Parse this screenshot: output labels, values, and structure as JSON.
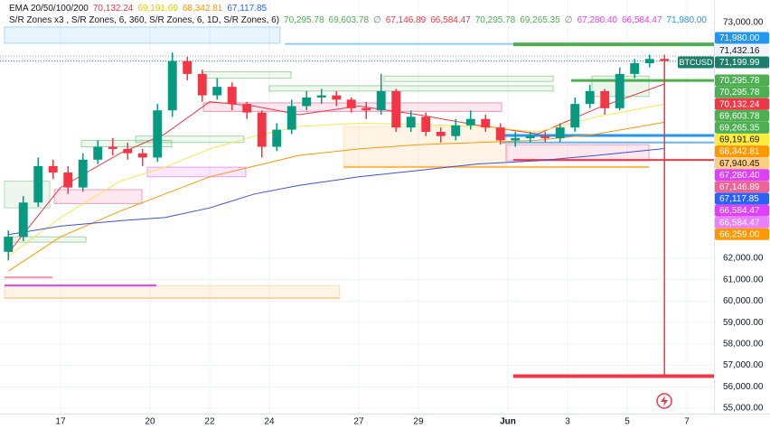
{
  "chart_data": {
    "type": "candlestick",
    "x": [
      15.25,
      15.75,
      16.25,
      16.75,
      17.25,
      17.75,
      18.25,
      18.75,
      19.25,
      19.75,
      20.25,
      20.75,
      21.25,
      21.75,
      22.25,
      22.75,
      23.25,
      23.75,
      24.25,
      24.75,
      25.25,
      25.75,
      26.25,
      26.75,
      27.25,
      27.75,
      28.25,
      28.75,
      29.25,
      29.75,
      30.25,
      30.75,
      31.25,
      31.75,
      32.25,
      32.75,
      33.25,
      33.75,
      34.25,
      34.75,
      35.25,
      35.75,
      36.25,
      36.75,
      37.25
    ],
    "open": [
      62300,
      63000,
      64600,
      66300,
      66000,
      65300,
      66600,
      67200,
      67100,
      66900,
      66700,
      68900,
      71200,
      70600,
      69600,
      70000,
      69200,
      68800,
      67200,
      68000,
      69100,
      69500,
      69600,
      69400,
      69000,
      68900,
      69800,
      68100,
      68600,
      67900,
      67700,
      68200,
      68500,
      68100,
      67500,
      67600,
      67700,
      67600,
      68100,
      69200,
      69800,
      69000,
      70600,
      71100,
      71300
    ],
    "high": [
      63300,
      64900,
      66700,
      66600,
      66300,
      66900,
      67500,
      67600,
      67400,
      67100,
      69200,
      71600,
      71400,
      70800,
      70400,
      70200,
      69300,
      68900,
      68300,
      69400,
      69800,
      69900,
      69800,
      69500,
      69300,
      70600,
      69900,
      68900,
      68800,
      68100,
      68500,
      68900,
      68700,
      68300,
      67900,
      67900,
      67900,
      68300,
      69500,
      70100,
      69900,
      70900,
      71300,
      71500,
      71500
    ],
    "low": [
      61900,
      62800,
      64400,
      65700,
      65000,
      65100,
      66400,
      66800,
      66600,
      66300,
      66500,
      68600,
      70300,
      69300,
      69400,
      68900,
      68500,
      66700,
      67000,
      67800,
      68900,
      69200,
      69100,
      68800,
      68500,
      68700,
      67900,
      67900,
      67700,
      67400,
      67500,
      68000,
      67900,
      67300,
      67200,
      67400,
      67400,
      67400,
      67900,
      69000,
      68700,
      68900,
      70400,
      70900,
      56500
    ],
    "close": [
      63000,
      64600,
      66300,
      66000,
      65300,
      66600,
      67200,
      67100,
      66900,
      66700,
      68900,
      71200,
      70600,
      69600,
      70000,
      69200,
      68800,
      67200,
      68000,
      69100,
      69500,
      69600,
      69400,
      69000,
      68900,
      69800,
      68100,
      68600,
      67900,
      67700,
      68200,
      68500,
      68100,
      67500,
      67600,
      67700,
      67600,
      68100,
      69200,
      69800,
      69000,
      70600,
      71100,
      71300,
      71199.99
    ],
    "up_color": "#089981",
    "down_color": "#f23645",
    "xlim": [
      14.97,
      38.91
    ],
    "ylim": [
      54750,
      74050
    ],
    "xticks": [
      17,
      20,
      22,
      24,
      27,
      29,
      {
        "value": 32,
        "label": "Jun"
      },
      {
        "value": 34,
        "label": "3"
      },
      {
        "value": 36,
        "label": "5"
      },
      {
        "value": 38,
        "label": "7"
      }
    ],
    "yticks": [
      {
        "value": 73000,
        "label": "73,000.00"
      },
      {
        "value": 62000,
        "label": "62,000.00"
      },
      {
        "value": 61000,
        "label": "61,000.00"
      },
      {
        "value": 60000,
        "label": "60,000.00"
      },
      {
        "value": 59000,
        "label": "59,000.00"
      },
      {
        "value": 58000,
        "label": "58,000.00"
      },
      {
        "value": 57000,
        "label": "57,000.00"
      },
      {
        "value": 56000,
        "label": "56,000.00"
      },
      {
        "value": 55000,
        "label": "55,000.00"
      }
    ],
    "indicators": [
      {
        "color": "#f23645",
        "x": [
          15.25,
          17,
          19,
          20.5,
          22,
          23.5,
          25,
          27,
          29,
          31,
          33,
          35,
          37.25
        ],
        "values": [
          62250,
          65300,
          66900,
          67800,
          69300,
          69100,
          68700,
          69100,
          68700,
          68200,
          67800,
          69000,
          70132
        ]
      },
      {
        "color": "#f5e94d",
        "x": [
          15.25,
          17,
          19,
          20.5,
          22,
          23.5,
          25,
          27,
          29,
          31,
          33,
          35,
          37.25
        ],
        "values": [
          62100,
          63900,
          65600,
          66250,
          67100,
          67700,
          68150,
          68300,
          68250,
          68150,
          67900,
          68600,
          69192
        ]
      },
      {
        "color": "#ff9800",
        "x": [
          15.25,
          17,
          19,
          20.5,
          22,
          23.5,
          25,
          27,
          29,
          31,
          33,
          35,
          37.25
        ],
        "values": [
          61400,
          63000,
          64200,
          65000,
          65800,
          66300,
          66800,
          67100,
          67300,
          67400,
          67500,
          67800,
          68343
        ]
      },
      {
        "color": "#3f51d5",
        "x": [
          15.25,
          17,
          19,
          20.5,
          22,
          23.5,
          25,
          27,
          29,
          31,
          33,
          35,
          37.25
        ],
        "values": [
          63100,
          63500,
          63750,
          63900,
          64350,
          65000,
          65400,
          65800,
          66100,
          66400,
          66550,
          66800,
          67118
        ]
      }
    ],
    "zones": [
      {
        "x": [
          15.12,
          24.36
        ],
        "y": [
          72030,
          72790
        ],
        "fill": "rgba(33,150,243,0.10)",
        "stroke": "rgba(33,150,243,0.35)"
      },
      {
        "x": [
          21.79,
          24.73
        ],
        "y": [
          70400,
          70700
        ],
        "fill": "rgba(76,175,80,0.08)",
        "stroke": "rgba(76,175,80,0.5)"
      },
      {
        "x": [
          24.0,
          33.52
        ],
        "y": [
          69800,
          70050
        ],
        "fill": "rgba(76,175,80,0.10)",
        "stroke": "rgba(76,175,80,0.5)"
      },
      {
        "x": [
          27.85,
          33.52
        ],
        "y": [
          70250,
          70500
        ],
        "fill": "rgba(76,175,80,0.08)",
        "stroke": "rgba(76,175,80,0.5)"
      },
      {
        "x": [
          21.79,
          31.79
        ],
        "y": [
          68850,
          69250
        ],
        "fill": "rgba(233,30,99,0.10)",
        "stroke": "rgba(233,30,99,0.45)"
      },
      {
        "x": [
          26.49,
          31.94
        ],
        "y": [
          66260,
          68150
        ],
        "fill": "rgba(255,152,0,0.10)",
        "stroke": "rgba(255,152,0,0.2)"
      },
      {
        "x": [
          31.94,
          36.73
        ],
        "y": [
          66550,
          67300
        ],
        "fill": "rgba(233,30,99,0.10)",
        "stroke": "rgba(233,30,99,0.4)"
      },
      {
        "x": [
          17.7,
          20.73
        ],
        "y": [
          67200,
          67500
        ],
        "fill": "rgba(76,175,80,0.10)",
        "stroke": "rgba(76,175,80,0.5)"
      },
      {
        "x": [
          19.52,
          23.15
        ],
        "y": [
          67400,
          67700
        ],
        "fill": "rgba(76,175,80,0.08)",
        "stroke": "rgba(76,175,80,0.5)"
      },
      {
        "x": [
          19.91,
          23.21
        ],
        "y": [
          65800,
          66250
        ],
        "fill": "rgba(224,64,251,0.12)",
        "stroke": "rgba(224,64,251,0.5)"
      },
      {
        "x": [
          16.79,
          19.73
        ],
        "y": [
          64550,
          65200
        ],
        "fill": "rgba(233,30,99,0.10)",
        "stroke": "rgba(233,30,99,0.4)"
      },
      {
        "x": [
          15.12,
          16.64
        ],
        "y": [
          64350,
          65600
        ],
        "fill": "rgba(76,175,80,0.10)",
        "stroke": "rgba(76,175,80,0.4)"
      },
      {
        "x": [
          15.12,
          17.85
        ],
        "y": [
          62750,
          63000
        ],
        "fill": "rgba(76,175,80,0.10)",
        "stroke": "rgba(76,175,80,0.5)"
      },
      {
        "x": [
          15.12,
          26.36
        ],
        "y": [
          60140,
          60730
        ],
        "fill": "rgba(255,152,0,0.10)",
        "stroke": "rgba(255,152,0,0.3)"
      },
      {
        "x": [
          34.82,
          36.73
        ],
        "y": [
          69550,
          70500
        ],
        "fill": "rgba(76,175,80,0.10)",
        "stroke": "rgba(76,175,80,0.5)"
      }
    ],
    "levels": [
      {
        "y": 72000,
        "x": [
          24.52,
          38.91
        ],
        "color": "#90caf9",
        "width": 2
      },
      {
        "y": 71980,
        "x": [
          32.18,
          38.91
        ],
        "color": "#4caf50",
        "width": 4
      },
      {
        "y": 71432.16,
        "x": [
          14.97,
          38.91
        ],
        "color": "#9598a1",
        "width": 1,
        "dash": true
      },
      {
        "y": 71199.99,
        "x": [
          14.97,
          38.91
        ],
        "color": "#089981",
        "width": 1,
        "dash": true
      },
      {
        "y": 70295.78,
        "x": [
          34.12,
          38.91
        ],
        "color": "#4caf50",
        "width": 3
      },
      {
        "y": 67730,
        "x": [
          31.79,
          38.91
        ],
        "color": "#2196f3",
        "width": 3
      },
      {
        "y": 67400,
        "x": [
          31.79,
          38.91
        ],
        "color": "#64b5f6",
        "width": 2
      },
      {
        "y": 66584.47,
        "x": [
          32.18,
          38.91
        ],
        "color": "#f23645",
        "width": 2
      },
      {
        "y": 66259,
        "x": [
          26.49,
          36.73
        ],
        "color": "#ffb74d",
        "width": 2
      },
      {
        "y": 61100,
        "x": [
          15.12,
          16.73
        ],
        "color": "#f48fb1",
        "width": 2
      },
      {
        "y": 60730,
        "x": [
          15.12,
          20.21
        ],
        "color": "#e040fb",
        "width": 2
      },
      {
        "y": 60140,
        "x": [
          15.12,
          26.36
        ],
        "color": "#ffb74d",
        "width": 1
      },
      {
        "y": 56500,
        "x": [
          32.18,
          38.91
        ],
        "color": "#f23645",
        "width": 4
      }
    ]
  },
  "legend": [
    {
      "label": "EMA 20/50/100/200",
      "values": [
        {
          "text": "70,132.24",
          "color": "#f23645"
        },
        {
          "text": "69,191.69",
          "color": "#e6c800"
        },
        {
          "text": "68,342.81",
          "color": "#ff9800"
        },
        {
          "text": "67,117.85",
          "color": "#2962ff"
        }
      ]
    },
    {
      "label": "S/R Zones x3 , S/R Zones, 6, 360, S/R Zones, 6, 1D, S/R Zones, 6)",
      "values": [
        {
          "text": "70,295.78",
          "color": "#4caf50"
        },
        {
          "text": "69,603.78",
          "color": "#4caf50"
        },
        {
          "text": "∅",
          "color": "#787b86"
        },
        {
          "text": "67,146.89",
          "color": "#f23645"
        },
        {
          "text": "66,584.47",
          "color": "#f23645"
        },
        {
          "text": "70,295.78",
          "color": "#4caf50"
        },
        {
          "text": "69,265.35",
          "color": "#4caf50"
        },
        {
          "text": "∅",
          "color": "#787b86"
        },
        {
          "text": "67,280.40",
          "color": "#e040fb"
        },
        {
          "text": "66,584.47",
          "color": "#e040fb"
        },
        {
          "text": "71,980.00",
          "color": "#2196f3"
        }
      ]
    }
  ],
  "symbol_tag": {
    "text": "BTCUSD",
    "color": "#1b7f6b"
  },
  "price_tags": [
    {
      "text": "71,980.00",
      "color": "#2196f3",
      "text_color": "#ffffff"
    },
    {
      "text": "71,432.16",
      "color": "#f0f3fa",
      "text_color": "#131722"
    },
    {
      "text": "71,199.99",
      "color": "#1b7f6b",
      "text_color": "#ffffff"
    },
    {
      "text": "70,295.78",
      "color": "#4caf50",
      "text_color": "#ffffff"
    },
    {
      "text": "70,295.78",
      "color": "#4caf50",
      "text_color": "#ffffff"
    },
    {
      "text": "70,132.24",
      "color": "#f23645",
      "text_color": "#ffffff"
    },
    {
      "text": "69,603.78",
      "color": "#4caf50",
      "text_color": "#ffffff"
    },
    {
      "text": "69,265.35",
      "color": "#4caf50",
      "text_color": "#ffffff"
    },
    {
      "text": "69,191.69",
      "color": "#ffeb3b",
      "text_color": "#131722"
    },
    {
      "text": "68,342.81",
      "color": "#ff9800",
      "text_color": "#ffffff"
    },
    {
      "text": "67,940.45",
      "color": "#ffcc80",
      "text_color": "#131722"
    },
    {
      "text": "67,280.40",
      "color": "#e040fb",
      "text_color": "#ffffff"
    },
    {
      "text": "67,146.89",
      "color": "#f06292",
      "text_color": "#ffffff"
    },
    {
      "text": "67,117.85",
      "color": "#2962ff",
      "text_color": "#ffffff"
    },
    {
      "text": "66,584.47",
      "color": "#e040fb",
      "text_color": "#ffffff"
    },
    {
      "text": "66,584.47",
      "color": "#ea80fc",
      "text_color": "#ffffff"
    },
    {
      "text": "66,259.00",
      "color": "#ff9800",
      "text_color": "#ffffff"
    }
  ]
}
